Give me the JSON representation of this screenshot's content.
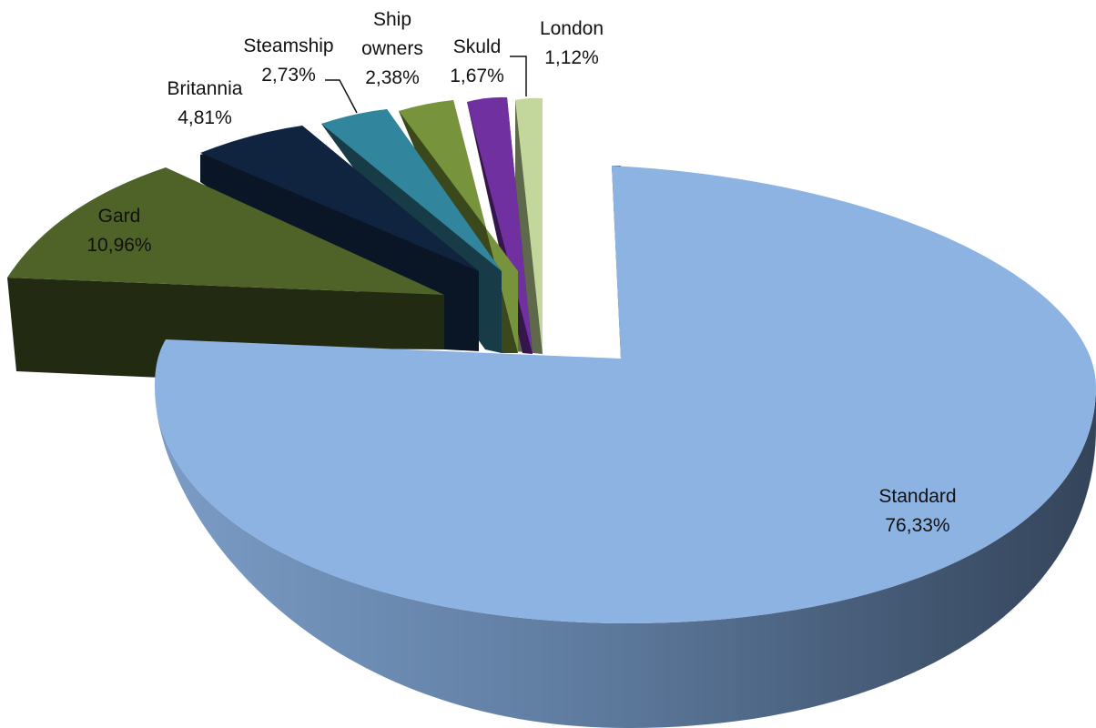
{
  "chart_data": {
    "type": "pie",
    "style": "3d-exploded",
    "slices": [
      {
        "name": "Standard",
        "value": 76.33,
        "label": "76,33%",
        "color": "#8DB3E2",
        "side_color_light": "#7B9CC6",
        "side_color_dark": "#3A4A62"
      },
      {
        "name": "Gard",
        "value": 10.96,
        "label": "10,96%",
        "color": "#4F6228",
        "side_color_light": "#222A11",
        "side_color_dark": "#1E250F"
      },
      {
        "name": "Britannia",
        "value": 4.81,
        "label": "4,81%",
        "color": "#10243F",
        "side_color_light": "#0A1626",
        "side_color_dark": "#070F1B"
      },
      {
        "name": "Steamship",
        "value": 2.73,
        "label": "2,73%",
        "color": "#31859C",
        "side_color_light": "#173C47",
        "side_color_dark": "#123039"
      },
      {
        "name": "Ship owners",
        "label_lines": [
          "Ship",
          "owners"
        ],
        "value": 2.38,
        "label": "2,38%",
        "color": "#77933C",
        "side_color_light": "#3A481C",
        "side_color_dark": "#2F3A17"
      },
      {
        "name": "Skuld",
        "value": 1.67,
        "label": "1,67%",
        "color": "#7030A0",
        "side_color_light": "#35164B",
        "side_color_dark": "#2A113C"
      },
      {
        "name": "London",
        "value": 1.12,
        "label": "1,12%",
        "color": "#C3D69B",
        "side_color_light": "#5E684B",
        "side_color_dark": "#4C543C"
      }
    ]
  }
}
